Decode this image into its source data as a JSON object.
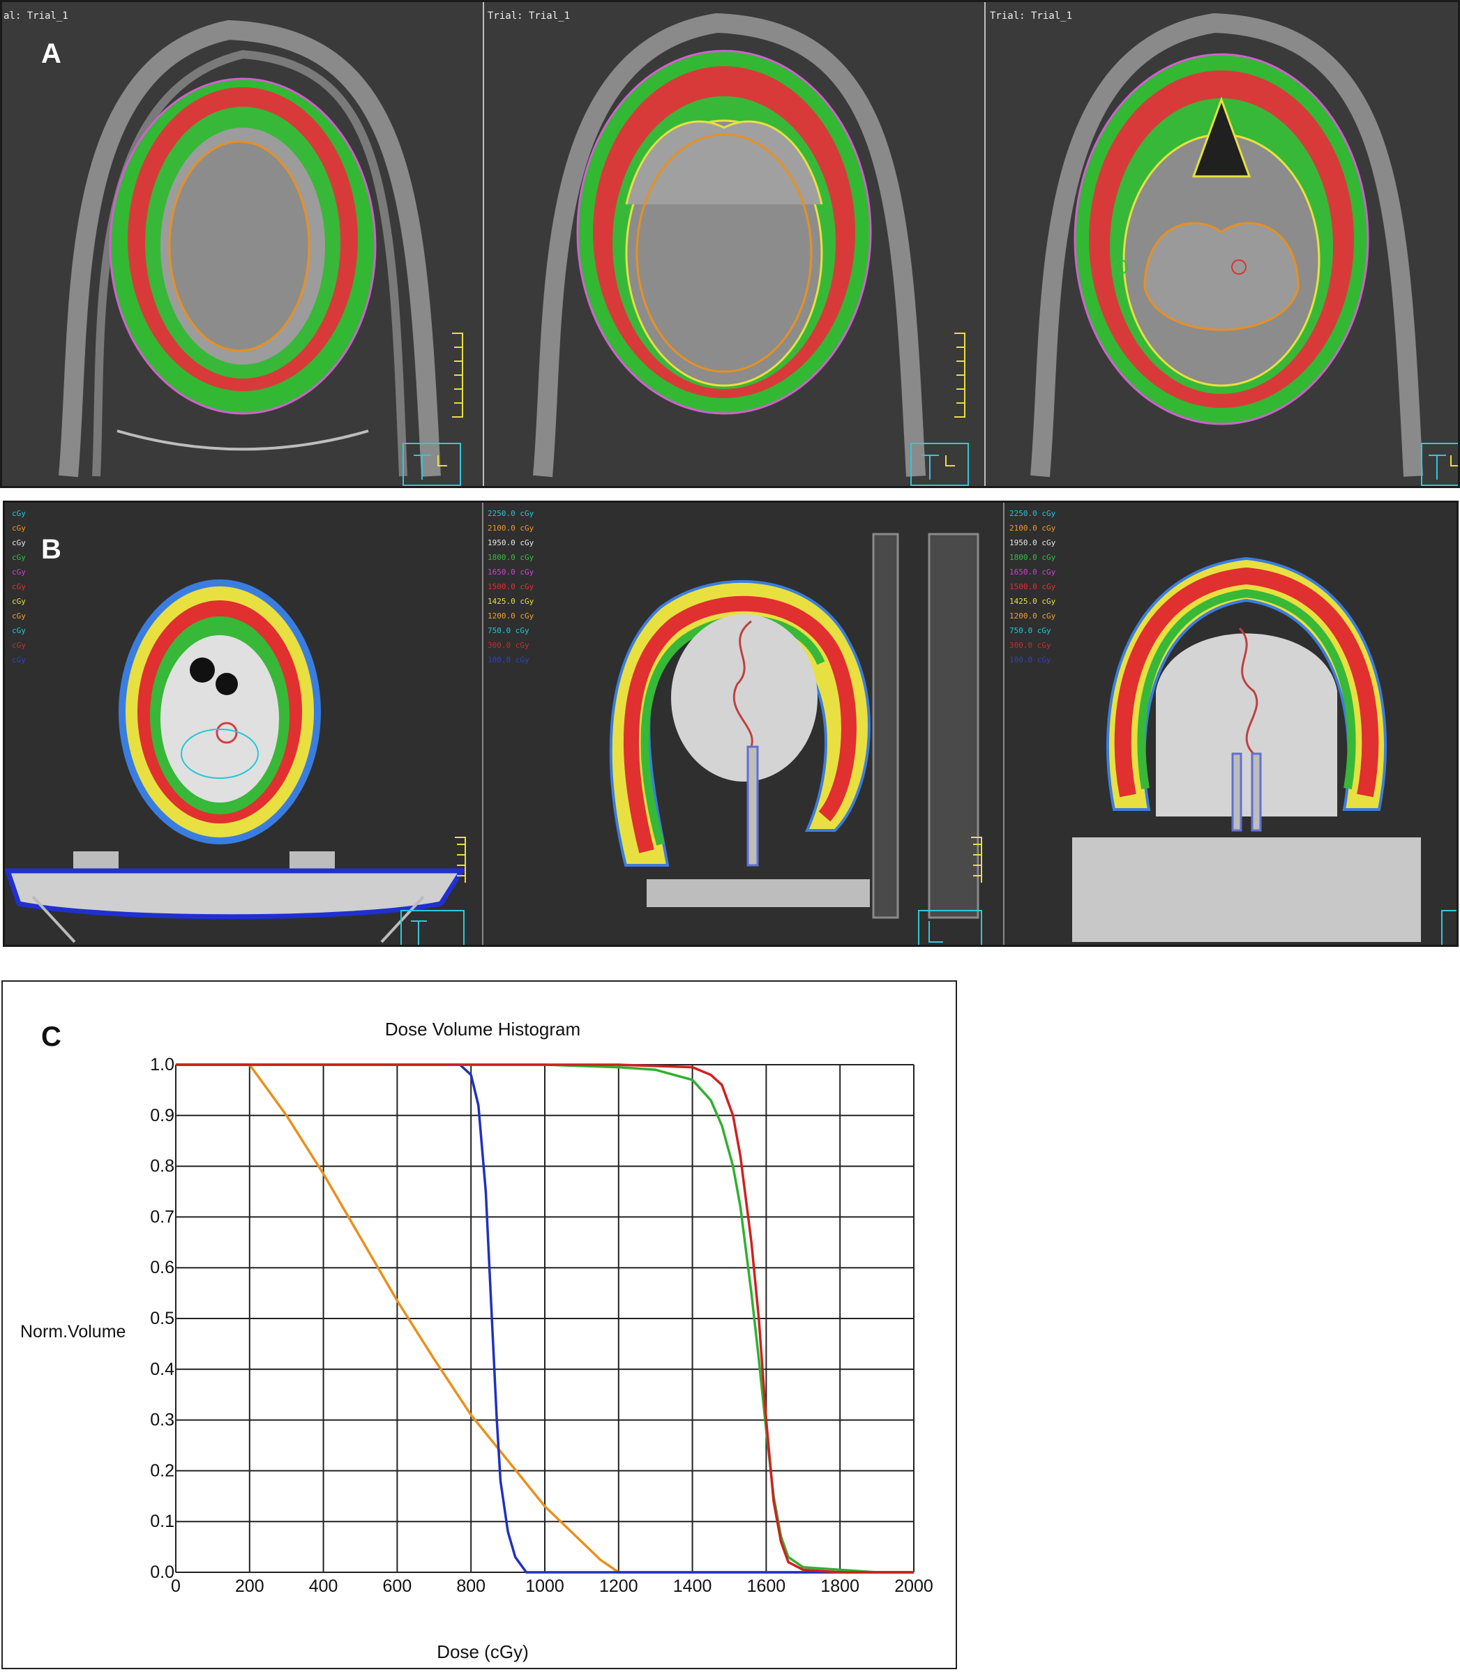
{
  "panels": {
    "a": {
      "letter": "A",
      "trial_labels": [
        "al: Trial_1",
        "Trial: Trial_1",
        "Trial: Trial_1"
      ]
    },
    "b": {
      "letter": "B",
      "legend_colors": [
        "#22c8d8",
        "#f09a20",
        "#e8e8e8",
        "#30c040",
        "#d040d0",
        "#e03030",
        "#e8e040",
        "#f0a030",
        "#20c8d8",
        "#c03030",
        "#3040d0"
      ],
      "legend_labels": [
        "2250.0 cGy",
        "2100.0 cGy",
        "1950.0 cGy",
        "1800.0 cGy",
        "1650.0 cGy",
        "1500.0 cGy",
        "1425.0 cGy",
        "1200.0 cGy",
        "750.0 cGy",
        "300.0 cGy",
        "100.0 cGy"
      ]
    },
    "c": {
      "letter": "C"
    }
  },
  "chart_data": {
    "type": "line",
    "title": "Dose Volume Histogram",
    "xlabel": "Dose (cGy)",
    "ylabel": "Norm.Volume",
    "xlim": [
      0,
      2000
    ],
    "ylim": [
      0,
      1.0
    ],
    "x_ticks": [
      "0",
      "200",
      "400",
      "600",
      "800",
      "1000",
      "1200",
      "1400",
      "1600",
      "1800",
      "2000"
    ],
    "y_ticks": [
      "0.0",
      "0.1",
      "0.2",
      "0.3",
      "0.4",
      "0.5",
      "0.6",
      "0.7",
      "0.8",
      "0.9",
      "1.0"
    ],
    "grid": true,
    "series": [
      {
        "color": "#e8901c",
        "points": [
          [
            0,
            1.0
          ],
          [
            200,
            1.0
          ],
          [
            250,
            0.95
          ],
          [
            300,
            0.9
          ],
          [
            400,
            0.785
          ],
          [
            500,
            0.66
          ],
          [
            600,
            0.535
          ],
          [
            700,
            0.42
          ],
          [
            800,
            0.31
          ],
          [
            900,
            0.22
          ],
          [
            1000,
            0.13
          ],
          [
            1100,
            0.06
          ],
          [
            1150,
            0.025
          ],
          [
            1200,
            0.0
          ],
          [
            2000,
            0.0
          ]
        ]
      },
      {
        "color": "#2030c0",
        "points": [
          [
            0,
            1.0
          ],
          [
            770,
            1.0
          ],
          [
            800,
            0.98
          ],
          [
            820,
            0.92
          ],
          [
            840,
            0.75
          ],
          [
            850,
            0.6
          ],
          [
            860,
            0.45
          ],
          [
            870,
            0.3
          ],
          [
            880,
            0.18
          ],
          [
            900,
            0.08
          ],
          [
            920,
            0.03
          ],
          [
            950,
            0.0
          ],
          [
            2000,
            0.0
          ]
        ]
      },
      {
        "color": "#30b030",
        "points": [
          [
            0,
            1.0
          ],
          [
            1000,
            1.0
          ],
          [
            1200,
            0.995
          ],
          [
            1300,
            0.99
          ],
          [
            1400,
            0.97
          ],
          [
            1450,
            0.93
          ],
          [
            1480,
            0.88
          ],
          [
            1510,
            0.8
          ],
          [
            1530,
            0.72
          ],
          [
            1560,
            0.55
          ],
          [
            1580,
            0.42
          ],
          [
            1600,
            0.28
          ],
          [
            1620,
            0.15
          ],
          [
            1640,
            0.07
          ],
          [
            1660,
            0.03
          ],
          [
            1700,
            0.01
          ],
          [
            1900,
            0.0
          ],
          [
            2000,
            0.0
          ]
        ]
      },
      {
        "color": "#d02020",
        "points": [
          [
            0,
            1.0
          ],
          [
            1000,
            1.0
          ],
          [
            1200,
            1.0
          ],
          [
            1400,
            0.995
          ],
          [
            1450,
            0.98
          ],
          [
            1480,
            0.96
          ],
          [
            1510,
            0.9
          ],
          [
            1530,
            0.82
          ],
          [
            1560,
            0.65
          ],
          [
            1580,
            0.5
          ],
          [
            1600,
            0.3
          ],
          [
            1620,
            0.14
          ],
          [
            1640,
            0.06
          ],
          [
            1660,
            0.02
          ],
          [
            1700,
            0.005
          ],
          [
            1800,
            0.0
          ],
          [
            2000,
            0.0
          ]
        ]
      }
    ]
  }
}
